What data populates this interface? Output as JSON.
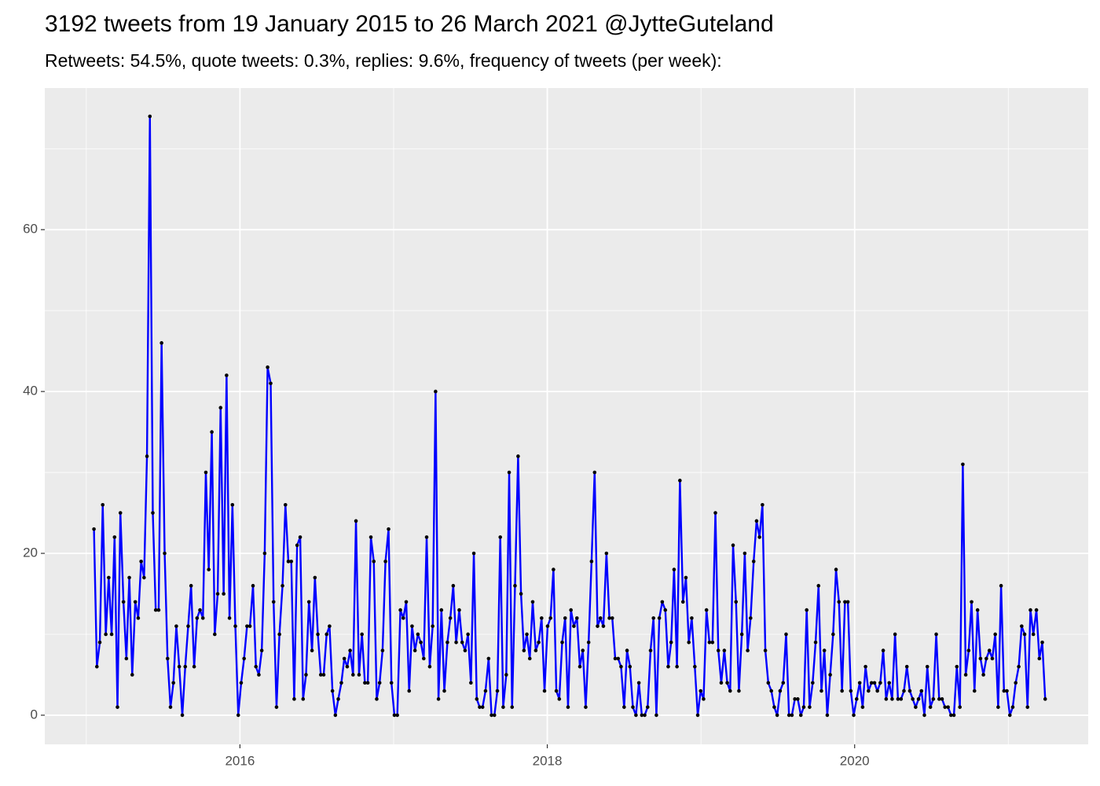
{
  "chart_data": {
    "type": "line",
    "title": "3192 tweets from 19 January 2015 to 26 March 2021 @JytteGuteland",
    "subtitle": "Retweets: 54.5%, quote tweets: 0.3%, replies: 9.6%, frequency of tweets (per week):",
    "xlim": [
      2014.73,
      2021.52
    ],
    "xticks": [
      2016,
      2018,
      2020
    ],
    "xminor": [
      2015,
      2017,
      2019,
      2021
    ],
    "ylim": [
      -3.6,
      77.5
    ],
    "yticks": [
      0,
      20,
      40,
      60
    ],
    "yminor": [
      10,
      30,
      50,
      70
    ],
    "grid": true,
    "line_color": "#0000ff",
    "point_color": "#000000",
    "x": [
      2015.05,
      2015.069,
      2015.088,
      2015.107,
      2015.127,
      2015.146,
      2015.165,
      2015.184,
      2015.203,
      2015.222,
      2015.242,
      2015.261,
      2015.28,
      2015.299,
      2015.319,
      2015.338,
      2015.357,
      2015.376,
      2015.395,
      2015.414,
      2015.433,
      2015.452,
      2015.471,
      2015.49,
      2015.51,
      2015.529,
      2015.548,
      2015.567,
      2015.586,
      2015.605,
      2015.625,
      2015.644,
      2015.663,
      2015.682,
      2015.702,
      2015.721,
      2015.74,
      2015.759,
      2015.778,
      2015.797,
      2015.817,
      2015.836,
      2015.855,
      2015.874,
      2015.894,
      2015.913,
      2015.932,
      2015.951,
      2015.97,
      2015.989,
      2016.008,
      2016.027,
      2016.046,
      2016.065,
      2016.085,
      2016.104,
      2016.123,
      2016.142,
      2016.161,
      2016.18,
      2016.2,
      2016.219,
      2016.238,
      2016.257,
      2016.277,
      2016.296,
      2016.315,
      2016.334,
      2016.353,
      2016.372,
      2016.392,
      2016.411,
      2016.43,
      2016.449,
      2016.469,
      2016.488,
      2016.507,
      2016.526,
      2016.545,
      2016.564,
      2016.583,
      2016.602,
      2016.621,
      2016.64,
      2016.66,
      2016.679,
      2016.698,
      2016.717,
      2016.736,
      2016.755,
      2016.775,
      2016.794,
      2016.813,
      2016.832,
      2016.852,
      2016.871,
      2016.89,
      2016.909,
      2016.928,
      2016.947,
      2016.967,
      2016.986,
      2017.005,
      2017.024,
      2017.044,
      2017.063,
      2017.082,
      2017.101,
      2017.12,
      2017.139,
      2017.158,
      2017.177,
      2017.196,
      2017.215,
      2017.235,
      2017.254,
      2017.273,
      2017.292,
      2017.311,
      2017.33,
      2017.35,
      2017.369,
      2017.388,
      2017.407,
      2017.427,
      2017.446,
      2017.465,
      2017.484,
      2017.503,
      2017.522,
      2017.541,
      2017.56,
      2017.579,
      2017.598,
      2017.618,
      2017.637,
      2017.656,
      2017.675,
      2017.694,
      2017.713,
      2017.733,
      2017.752,
      2017.771,
      2017.79,
      2017.81,
      2017.829,
      2017.848,
      2017.867,
      2017.886,
      2017.905,
      2017.925,
      2017.944,
      2017.963,
      2017.982,
      2018.002,
      2018.021,
      2018.04,
      2018.059,
      2018.078,
      2018.097,
      2018.116,
      2018.135,
      2018.154,
      2018.173,
      2018.193,
      2018.212,
      2018.231,
      2018.25,
      2018.269,
      2018.288,
      2018.308,
      2018.327,
      2018.346,
      2018.365,
      2018.385,
      2018.404,
      2018.423,
      2018.442,
      2018.461,
      2018.48,
      2018.5,
      2018.519,
      2018.538,
      2018.557,
      2018.577,
      2018.596,
      2018.615,
      2018.634,
      2018.653,
      2018.672,
      2018.691,
      2018.71,
      2018.729,
      2018.748,
      2018.768,
      2018.787,
      2018.806,
      2018.825,
      2018.844,
      2018.863,
      2018.883,
      2018.902,
      2018.921,
      2018.94,
      2018.96,
      2018.979,
      2018.998,
      2019.017,
      2019.036,
      2019.055,
      2019.075,
      2019.094,
      2019.113,
      2019.132,
      2019.152,
      2019.171,
      2019.19,
      2019.209,
      2019.228,
      2019.247,
      2019.266,
      2019.285,
      2019.304,
      2019.323,
      2019.343,
      2019.362,
      2019.381,
      2019.4,
      2019.419,
      2019.438,
      2019.458,
      2019.477,
      2019.496,
      2019.515,
      2019.535,
      2019.554,
      2019.573,
      2019.592,
      2019.611,
      2019.63,
      2019.65,
      2019.669,
      2019.688,
      2019.707,
      2019.727,
      2019.746,
      2019.765,
      2019.784,
      2019.803,
      2019.822,
      2019.841,
      2019.86,
      2019.879,
      2019.898,
      2019.918,
      2019.937,
      2019.956,
      2019.975,
      2019.994,
      2020.013,
      2020.033,
      2020.052,
      2020.071,
      2020.09,
      2020.11,
      2020.129,
      2020.148,
      2020.167,
      2020.186,
      2020.205,
      2020.225,
      2020.244,
      2020.263,
      2020.282,
      2020.302,
      2020.321,
      2020.34,
      2020.359,
      2020.378,
      2020.397,
      2020.416,
      2020.435,
      2020.454,
      2020.473,
      2020.493,
      2020.512,
      2020.531,
      2020.55,
      2020.569,
      2020.588,
      2020.608,
      2020.627,
      2020.646,
      2020.665,
      2020.685,
      2020.704,
      2020.723,
      2020.742,
      2020.761,
      2020.78,
      2020.8,
      2020.819,
      2020.838,
      2020.857,
      2020.877,
      2020.896,
      2020.915,
      2020.934,
      2020.953,
      2020.972,
      2020.991,
      2021.01,
      2021.029,
      2021.048,
      2021.068,
      2021.087,
      2021.106,
      2021.125,
      2021.144,
      2021.163,
      2021.183,
      2021.202,
      2021.221,
      2021.24
    ],
    "values": [
      23,
      6,
      9,
      26,
      10,
      17,
      10,
      22,
      1,
      25,
      14,
      7,
      17,
      5,
      14,
      12,
      19,
      17,
      32,
      74,
      25,
      13,
      13,
      46,
      20,
      7,
      1,
      4,
      11,
      6,
      0,
      6,
      11,
      16,
      6,
      12,
      13,
      12,
      30,
      18,
      35,
      10,
      15,
      38,
      15,
      42,
      12,
      26,
      11,
      0,
      4,
      7,
      11,
      11,
      16,
      6,
      5,
      8,
      20,
      43,
      41,
      14,
      1,
      10,
      16,
      26,
      19,
      19,
      2,
      21,
      22,
      2,
      5,
      14,
      8,
      17,
      10,
      5,
      5,
      10,
      11,
      3,
      0,
      2,
      4,
      7,
      6,
      8,
      5,
      24,
      5,
      10,
      4,
      4,
      22,
      19,
      2,
      4,
      8,
      19,
      23,
      4,
      0,
      0,
      13,
      12,
      14,
      3,
      11,
      8,
      10,
      9,
      7,
      22,
      6,
      11,
      40,
      2,
      13,
      3,
      9,
      12,
      16,
      9,
      13,
      9,
      8,
      10,
      4,
      20,
      2,
      1,
      1,
      3,
      7,
      0,
      0,
      3,
      22,
      1,
      5,
      30,
      1,
      16,
      32,
      15,
      8,
      10,
      7,
      14,
      8,
      9,
      12,
      3,
      11,
      12,
      18,
      3,
      2,
      9,
      12,
      1,
      13,
      11,
      12,
      6,
      8,
      1,
      9,
      19,
      30,
      11,
      12,
      11,
      20,
      12,
      12,
      7,
      7,
      6,
      1,
      8,
      6,
      1,
      0,
      4,
      0,
      0,
      1,
      8,
      12,
      0,
      12,
      14,
      13,
      6,
      9,
      18,
      6,
      29,
      14,
      17,
      9,
      12,
      6,
      0,
      3,
      2,
      13,
      9,
      9,
      25,
      8,
      4,
      8,
      4,
      3,
      21,
      14,
      3,
      10,
      20,
      8,
      12,
      19,
      24,
      22,
      26,
      8,
      4,
      3,
      1,
      0,
      3,
      4,
      10,
      0,
      0,
      2,
      2,
      0,
      1,
      13,
      1,
      4,
      9,
      16,
      3,
      8,
      0,
      5,
      10,
      18,
      14,
      3,
      14,
      14,
      3,
      0,
      2,
      4,
      1,
      6,
      3,
      4,
      4,
      3,
      4,
      8,
      2,
      4,
      2,
      10,
      2,
      2,
      3,
      6,
      3,
      2,
      1,
      2,
      3,
      0,
      6,
      1,
      2,
      10,
      2,
      2,
      1,
      1,
      0,
      0,
      6,
      1,
      31,
      5,
      8,
      14,
      3,
      13,
      7,
      5,
      7,
      8,
      7,
      10,
      1,
      16,
      3,
      3,
      0,
      1,
      4,
      6,
      11,
      10,
      1,
      13,
      10,
      13,
      7,
      9,
      2
    ]
  }
}
